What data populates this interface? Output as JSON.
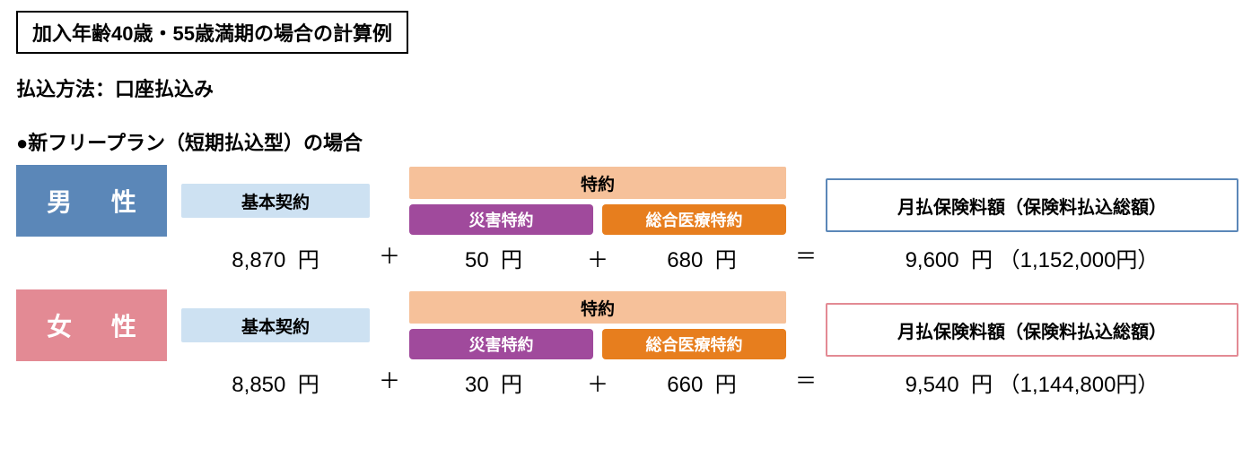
{
  "title": "加入年齢40歳・55歳満期の場合の計算例",
  "payment_method_label": "払込方法：口座払込み",
  "plan_title": "●新フリープラン（短期払込型）の場合",
  "labels": {
    "basic": "基本契約",
    "rider_group": "特約",
    "rider_disaster": "災害特約",
    "rider_medical": "総合医療特約",
    "total": "月払保険料額（保険料払込総額）",
    "yen": "円",
    "plus": "＋",
    "equals": "＝"
  },
  "colors": {
    "male_bg": "#5b87b8",
    "female_bg": "#e38a94",
    "basic_bg": "#cde1f2",
    "rider_top_bg": "#f6c19a",
    "rider_disaster_bg": "#a04a9c",
    "rider_medical_bg": "#e77e1e",
    "male_border": "#5b87b8",
    "female_border": "#e38a94",
    "text": "#000000"
  },
  "rows": [
    {
      "gender": "男 性",
      "gender_key": "male",
      "basic": "8,870",
      "rider1": "50",
      "rider2": "680",
      "monthly": "9,600",
      "total_paid": "1,152,000"
    },
    {
      "gender": "女 性",
      "gender_key": "female",
      "basic": "8,850",
      "rider1": "30",
      "rider2": "660",
      "monthly": "9,540",
      "total_paid": "1,144,800"
    }
  ]
}
